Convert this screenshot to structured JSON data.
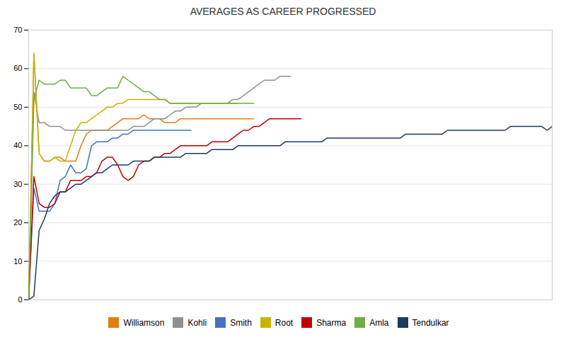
{
  "chart_data": {
    "type": "line",
    "title": "AVERAGES AS CAREER PROGRESSED",
    "xlim": [
      0,
      200
    ],
    "ylim": [
      0,
      70
    ],
    "yticks": [
      0,
      10,
      20,
      30,
      40,
      50,
      60,
      70
    ],
    "grid": "y",
    "tick_labels": "y",
    "legend": "bottom",
    "series": [
      {
        "name": "Williamson",
        "color": "#E08010",
        "x": [
          0,
          2,
          4,
          6,
          8,
          10,
          12,
          14,
          16,
          18,
          20,
          22,
          24,
          26,
          28,
          30,
          32,
          34,
          36,
          38,
          40,
          42,
          44,
          46,
          48,
          50,
          52,
          54,
          56,
          58,
          60,
          62,
          64,
          66,
          68,
          70,
          72,
          74,
          76,
          78,
          80,
          82,
          84,
          86
        ],
        "values": [
          0,
          64,
          38,
          36,
          36,
          37,
          37,
          36,
          36,
          36,
          40,
          43,
          44,
          44,
          44,
          44,
          45,
          46,
          47,
          47,
          47,
          47,
          48,
          47,
          47,
          47,
          46,
          46,
          46,
          47,
          47,
          47,
          47,
          47,
          47,
          47,
          47,
          47,
          47,
          47,
          47,
          47,
          47,
          47
        ]
      },
      {
        "name": "Kohli",
        "color": "#909090",
        "x": [
          0,
          2,
          4,
          6,
          8,
          10,
          12,
          14,
          16,
          18,
          20,
          22,
          24,
          26,
          28,
          30,
          32,
          34,
          36,
          38,
          40,
          42,
          44,
          46,
          48,
          50,
          52,
          54,
          56,
          58,
          60,
          62,
          64,
          66,
          68,
          70,
          72,
          74,
          76,
          78,
          80,
          82,
          84,
          86,
          88,
          90,
          92,
          94,
          96,
          98,
          100
        ],
        "values": [
          0,
          54,
          46,
          46,
          45,
          45,
          45,
          44,
          44,
          44,
          44,
          44,
          44,
          44,
          44,
          44,
          44,
          44,
          44,
          44,
          45,
          45,
          45,
          46,
          47,
          47,
          47,
          48,
          49,
          49,
          50,
          50,
          50,
          51,
          51,
          51,
          51,
          51,
          51,
          52,
          52,
          53,
          54,
          55,
          56,
          57,
          57,
          57,
          58,
          58,
          58
        ]
      },
      {
        "name": "Smith",
        "color": "#4472C4",
        "x": [
          0,
          2,
          4,
          6,
          8,
          10,
          12,
          14,
          16,
          18,
          20,
          22,
          24,
          26,
          28,
          30,
          32,
          34,
          36,
          38,
          40,
          42,
          44,
          46,
          48,
          50,
          52,
          54,
          56,
          58,
          60,
          62
        ],
        "values": [
          0,
          29,
          23,
          23,
          23,
          25,
          31,
          32,
          35,
          33,
          33,
          34,
          40,
          41,
          41,
          41,
          42,
          42,
          43,
          43,
          44,
          44,
          44,
          44,
          44,
          44,
          44,
          44,
          44,
          44,
          44,
          44
        ]
      },
      {
        "name": "Root",
        "color": "#C8B400",
        "x": [
          0,
          2,
          4,
          6,
          8,
          10,
          12,
          14,
          16,
          18,
          20,
          22,
          24,
          26,
          28,
          30,
          32,
          34,
          36,
          38,
          40,
          42,
          44,
          46,
          48,
          50,
          52,
          54,
          56,
          58,
          60,
          62,
          64,
          66,
          68,
          70,
          72,
          74,
          76,
          78,
          80
        ],
        "values": [
          0,
          64,
          38,
          36,
          36,
          37,
          36,
          36,
          40,
          44,
          46,
          46,
          47,
          48,
          49,
          50,
          50,
          51,
          51,
          52,
          52,
          52,
          52,
          52,
          52,
          52,
          52,
          51,
          51,
          51,
          51,
          51,
          51,
          51,
          51,
          51,
          51,
          51,
          51,
          51,
          51
        ]
      },
      {
        "name": "Sharma",
        "color": "#C00000",
        "x": [
          0,
          2,
          4,
          6,
          8,
          10,
          12,
          14,
          16,
          18,
          20,
          22,
          24,
          26,
          28,
          30,
          32,
          34,
          36,
          38,
          40,
          42,
          44,
          46,
          48,
          50,
          52,
          54,
          56,
          58,
          60,
          62,
          64,
          66,
          68,
          70,
          72,
          74,
          76,
          78,
          80,
          82,
          84,
          86,
          88,
          90,
          92,
          94,
          96,
          98,
          100,
          102,
          104
        ],
        "values": [
          0,
          32,
          25,
          24,
          24,
          25,
          28,
          28,
          31,
          31,
          31,
          32,
          32,
          33,
          36,
          37,
          37,
          35,
          32,
          31,
          32,
          35,
          36,
          36,
          37,
          37,
          38,
          38,
          39,
          40,
          40,
          40,
          40,
          40,
          40,
          41,
          41,
          41,
          41,
          42,
          43,
          44,
          44,
          45,
          45,
          46,
          47,
          47,
          47,
          47,
          47,
          47,
          47
        ]
      },
      {
        "name": "Amla",
        "color": "#70AD47",
        "x": [
          0,
          2,
          4,
          6,
          8,
          10,
          12,
          14,
          16,
          18,
          20,
          22,
          24,
          26,
          28,
          30,
          32,
          34,
          36,
          38,
          40,
          42,
          44,
          46,
          48,
          50,
          52,
          54,
          56,
          58,
          60,
          62,
          64,
          66,
          68,
          70,
          72,
          74,
          76,
          78,
          80,
          82,
          84,
          86
        ],
        "values": [
          0,
          52,
          57,
          56,
          56,
          56,
          57,
          57,
          55,
          55,
          55,
          55,
          53,
          53,
          54,
          55,
          55,
          55,
          58,
          57,
          56,
          55,
          54,
          54,
          53,
          52,
          52,
          51,
          51,
          51,
          51,
          51,
          51,
          51,
          51,
          51,
          51,
          51,
          51,
          51,
          51,
          51,
          51,
          51
        ]
      },
      {
        "name": "Tendulkar",
        "color": "#1F3864",
        "x": [
          0,
          2,
          4,
          6,
          8,
          10,
          12,
          14,
          16,
          18,
          20,
          22,
          24,
          26,
          28,
          30,
          32,
          34,
          36,
          38,
          40,
          42,
          44,
          46,
          48,
          50,
          52,
          54,
          56,
          58,
          60,
          62,
          64,
          66,
          68,
          70,
          72,
          74,
          76,
          78,
          80,
          82,
          84,
          86,
          88,
          90,
          92,
          94,
          96,
          98,
          100,
          102,
          104,
          106,
          108,
          110,
          112,
          114,
          116,
          118,
          120,
          122,
          124,
          126,
          128,
          130,
          132,
          134,
          136,
          138,
          140,
          142,
          144,
          146,
          148,
          150,
          152,
          154,
          156,
          158,
          160,
          162,
          164,
          166,
          168,
          170,
          172,
          174,
          176,
          178,
          180,
          182,
          184,
          186,
          188,
          190,
          192,
          194,
          196,
          198,
          200
        ],
        "values": [
          0,
          1,
          18,
          21,
          25,
          27,
          28,
          28,
          29,
          30,
          30,
          31,
          32,
          33,
          33,
          34,
          35,
          35,
          35,
          35,
          36,
          36,
          36,
          36,
          37,
          37,
          37,
          37,
          37,
          37,
          38,
          38,
          38,
          38,
          38,
          39,
          39,
          39,
          39,
          39,
          40,
          40,
          40,
          40,
          40,
          40,
          40,
          40,
          40,
          41,
          41,
          41,
          41,
          41,
          41,
          41,
          41,
          42,
          42,
          42,
          42,
          42,
          42,
          42,
          42,
          42,
          42,
          42,
          42,
          42,
          42,
          42,
          43,
          43,
          43,
          43,
          43,
          43,
          43,
          43,
          44,
          44,
          44,
          44,
          44,
          44,
          44,
          44,
          44,
          44,
          44,
          44,
          45,
          45,
          45,
          45,
          45,
          45,
          45,
          44,
          45
        ]
      }
    ]
  }
}
